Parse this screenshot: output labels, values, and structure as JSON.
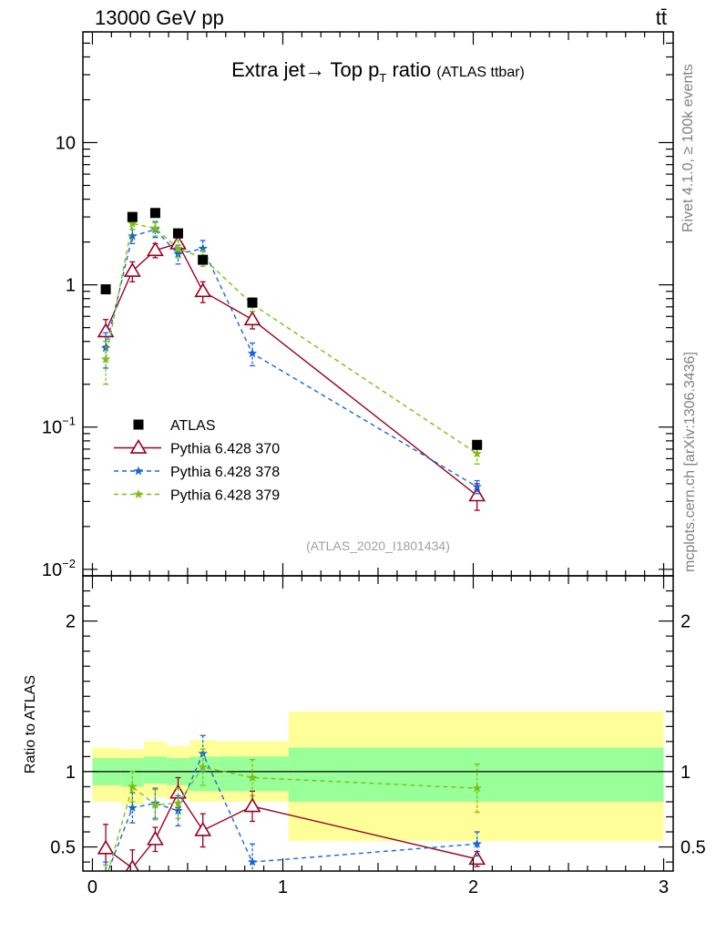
{
  "header": {
    "energy_label": "13000 GeV pp",
    "process_label": "tt̄"
  },
  "side_labels": {
    "rivet": "Rivet 4.1.0, ≥ 100k events",
    "mcplots": "mcplots.cern.ch [arXiv:1306.3436]"
  },
  "chart_data": [
    {
      "type": "line",
      "panel": "main",
      "title": "Extra jet→ Top p_T ratio",
      "title_parts": {
        "main": "Extra jet",
        "arrow": "→",
        "top": " Top p",
        "sub": "T",
        "ratio": " ratio",
        "small": "(ATLAS ttbar)"
      },
      "analysis_tag": "(ATLAS_2020_I1801434)",
      "yscale": "log",
      "xlim": [
        -0.05,
        3.05
      ],
      "ylim": [
        0.009,
        60
      ],
      "ytick_labels": [
        {
          "value": 10,
          "base": "10",
          "exp": ""
        },
        {
          "value": 1,
          "base": "1",
          "exp": ""
        },
        {
          "value": 0.1,
          "base": "10",
          "exp": "−1"
        },
        {
          "value": 0.01,
          "base": "10",
          "exp": "−2"
        }
      ],
      "legend_position": "bottom-left",
      "series": [
        {
          "name": "ATLAS",
          "marker": "square",
          "color": "#000000",
          "line": "none",
          "x": [
            0.07,
            0.21,
            0.33,
            0.45,
            0.58,
            0.84,
            2.02
          ],
          "y": [
            0.93,
            3.0,
            3.2,
            2.3,
            1.5,
            0.75,
            0.075
          ],
          "err": [
            0,
            0,
            0,
            0,
            0,
            0,
            0.005
          ]
        },
        {
          "name": "Pythia 6.428 370",
          "marker": "triangle-open",
          "color": "#990021",
          "line": "solid",
          "x": [
            0.07,
            0.21,
            0.33,
            0.45,
            0.58,
            0.84,
            2.02
          ],
          "y": [
            0.47,
            1.25,
            1.75,
            1.95,
            0.9,
            0.57,
            0.033
          ],
          "err": [
            0.1,
            0.2,
            0.2,
            0.25,
            0.15,
            0.08,
            0.007
          ]
        },
        {
          "name": "Pythia 6.428 378",
          "marker": "star",
          "color": "#1866d6",
          "line": "dashed",
          "x": [
            0.07,
            0.21,
            0.33,
            0.45,
            0.58,
            0.84,
            2.02
          ],
          "y": [
            0.36,
            2.2,
            2.45,
            1.65,
            1.8,
            0.33,
            0.038
          ],
          "err": [
            0.1,
            0.25,
            0.3,
            0.25,
            0.25,
            0.06,
            0.004
          ]
        },
        {
          "name": "Pythia 6.428 379",
          "marker": "star",
          "color": "#7bbf14",
          "line": "dashed",
          "x": [
            0.07,
            0.21,
            0.33,
            0.45,
            0.58,
            0.84,
            2.02
          ],
          "y": [
            0.3,
            2.7,
            2.5,
            1.8,
            1.55,
            0.73,
            0.065
          ],
          "err": [
            0.1,
            0.25,
            0.3,
            0.25,
            0.2,
            0.08,
            0.01
          ]
        }
      ]
    },
    {
      "type": "line",
      "panel": "ratio",
      "ylabel": "Ratio to ATLAS",
      "xlim": [
        -0.05,
        3.05
      ],
      "ylim": [
        0.34,
        2.3
      ],
      "yticks": [
        0.5,
        1,
        2
      ],
      "ytick_labels": [
        "0.5",
        "1",
        "2"
      ],
      "xticks": [
        0,
        1,
        2,
        3
      ],
      "xtick_labels": [
        "0",
        "1",
        "2",
        "3"
      ],
      "reference_line": 1,
      "bands": [
        {
          "x0": 0.0,
          "x1": 0.15,
          "inner_lo": 0.91,
          "inner_hi": 1.09,
          "outer_lo": 0.8,
          "outer_hi": 1.16
        },
        {
          "x0": 0.15,
          "x1": 0.27,
          "inner_lo": 0.9,
          "inner_hi": 1.09,
          "outer_lo": 0.78,
          "outer_hi": 1.15
        },
        {
          "x0": 0.27,
          "x1": 0.39,
          "inner_lo": 0.92,
          "inner_hi": 1.1,
          "outer_lo": 0.83,
          "outer_hi": 1.2
        },
        {
          "x0": 0.39,
          "x1": 0.51,
          "inner_lo": 0.91,
          "inner_hi": 1.09,
          "outer_lo": 0.82,
          "outer_hi": 1.17
        },
        {
          "x0": 0.51,
          "x1": 0.65,
          "inner_lo": 0.87,
          "inner_hi": 1.1,
          "outer_lo": 0.8,
          "outer_hi": 1.21
        },
        {
          "x0": 0.65,
          "x1": 1.03,
          "inner_lo": 0.87,
          "inner_hi": 1.1,
          "outer_lo": 0.8,
          "outer_hi": 1.2
        },
        {
          "x0": 1.03,
          "x1": 3.0,
          "inner_lo": 0.8,
          "inner_hi": 1.16,
          "outer_lo": 0.54,
          "outer_hi": 1.4
        }
      ],
      "series": [
        {
          "name": "Pythia 6.428 370",
          "marker": "triangle-open",
          "color": "#990021",
          "line": "solid",
          "x": [
            0.07,
            0.21,
            0.33,
            0.45,
            0.58,
            0.84,
            2.02
          ],
          "y": [
            0.49,
            0.36,
            0.55,
            0.86,
            0.61,
            0.77,
            0.42
          ],
          "err": [
            0.16,
            0.12,
            0.08,
            0.1,
            0.11,
            0.1,
            0.05
          ]
        },
        {
          "name": "Pythia 6.428 378",
          "marker": "star",
          "color": "#1866d6",
          "line": "dashed",
          "x": [
            0.07,
            0.21,
            0.33,
            0.45,
            0.58,
            0.84,
            2.02
          ],
          "y": [
            0.3,
            0.76,
            0.79,
            0.74,
            1.12,
            0.4,
            0.52
          ],
          "err": [
            0.1,
            0.1,
            0.1,
            0.1,
            0.12,
            0.12,
            0.08
          ]
        },
        {
          "name": "Pythia 6.428 379",
          "marker": "star",
          "color": "#7bbf14",
          "line": "dashed",
          "x": [
            0.07,
            0.21,
            0.33,
            0.45,
            0.58,
            0.84,
            2.02
          ],
          "y": [
            0.28,
            0.9,
            0.78,
            0.79,
            1.03,
            0.96,
            0.89
          ],
          "err": [
            0.1,
            0.1,
            0.1,
            0.1,
            0.12,
            0.12,
            0.16
          ]
        }
      ]
    }
  ]
}
